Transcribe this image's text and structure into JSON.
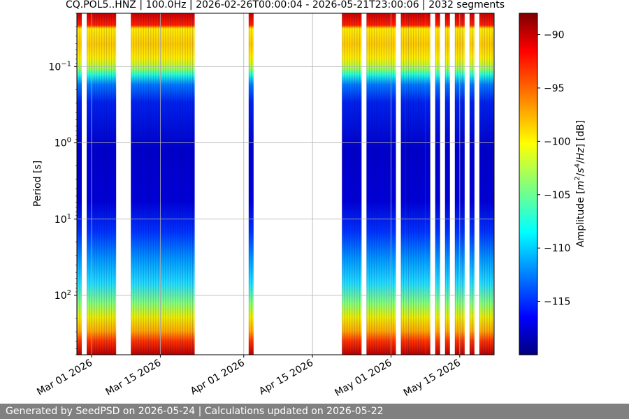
{
  "chart_data": {
    "type": "heatmap",
    "title": "CQ.POL5..HNZ | 100.0Hz | 2026-02-26T00:00:04 - 2026-05-21T23:00:06 | 2032 segments",
    "xlabel": "",
    "ylabel": "Period [s]",
    "x_range": [
      "2026-02-26",
      "2026-05-22"
    ],
    "x_ticks": [
      "Mar 01 2026",
      "Mar 15 2026",
      "Apr 01 2026",
      "Apr 15 2026",
      "May 01 2026",
      "May 15 2026"
    ],
    "x_tick_dates": [
      "2026-03-01",
      "2026-03-15",
      "2026-04-01",
      "2026-04-15",
      "2026-05-01",
      "2026-05-15"
    ],
    "y_scale": "log",
    "y_inverted": true,
    "y_range": [
      0.02,
      600
    ],
    "y_ticks": [
      {
        "base": "10",
        "exp": "−1",
        "value": 0.1
      },
      {
        "base": "10",
        "exp": "0",
        "value": 1
      },
      {
        "base": "10",
        "exp": "1",
        "value": 10
      },
      {
        "base": "10",
        "exp": "2",
        "value": 100
      }
    ],
    "grid": true,
    "colormap": "jet",
    "colorbar": {
      "label_parts": [
        "Amplitude [",
        "m",
        "2",
        "/",
        "s",
        "4",
        "/",
        "Hz",
        "] [dB]"
      ],
      "range": [
        -120,
        -88
      ],
      "ticks": [
        "−90",
        "−95",
        "−100",
        "−105",
        "−110",
        "−115"
      ],
      "tick_values": [
        -90,
        -95,
        -100,
        -105,
        -110,
        -115
      ]
    },
    "data_intervals": [
      [
        "2026-02-26",
        "2026-02-27"
      ],
      [
        "2026-02-28",
        "2026-03-06"
      ],
      [
        "2026-03-09",
        "2026-03-22"
      ],
      [
        "2026-04-02",
        "2026-04-03"
      ],
      [
        "2026-04-21",
        "2026-04-25"
      ],
      [
        "2026-04-26",
        "2026-05-02"
      ],
      [
        "2026-05-03",
        "2026-05-04"
      ],
      [
        "2026-05-04",
        "2026-05-08"
      ],
      [
        "2026-05-08",
        "2026-05-09"
      ],
      [
        "2026-05-10",
        "2026-05-11"
      ],
      [
        "2026-05-12",
        "2026-05-13"
      ],
      [
        "2026-05-14",
        "2026-05-16"
      ],
      [
        "2026-05-17",
        "2026-05-18"
      ],
      [
        "2026-05-19",
        "2026-05-22"
      ]
    ]
  },
  "footer": {
    "text": "Generated by SeedPSD on 2026-05-24 | Calculations updated on 2026-05-22"
  }
}
